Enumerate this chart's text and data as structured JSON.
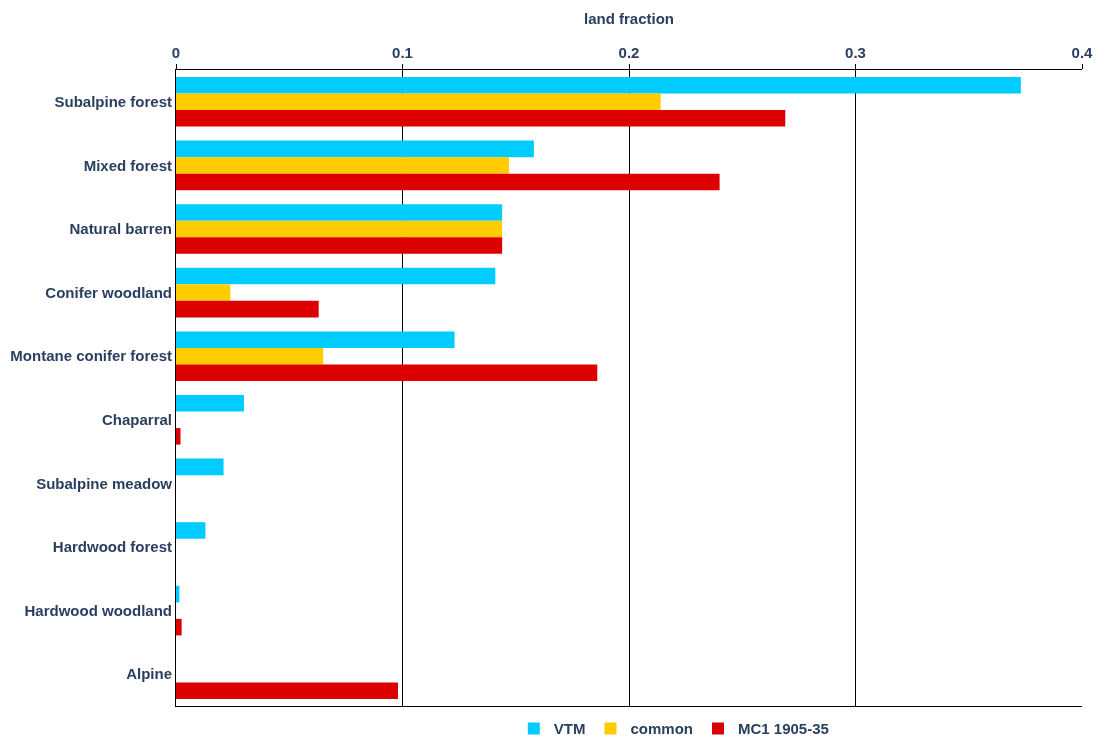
{
  "chart_data": {
    "type": "bar",
    "orientation": "horizontal",
    "xlabel": "land fraction",
    "categories": [
      "Subalpine forest",
      "Mixed forest",
      "Natural barren",
      "Conifer woodland",
      "Montane conifer forest",
      "Chaparral",
      "Subalpine meadow",
      "Hardwood forest",
      "Hardwood woodland",
      "Alpine"
    ],
    "series": [
      {
        "name": "VTM",
        "color": "#00ccff",
        "values": [
          0.373,
          0.158,
          0.144,
          0.141,
          0.123,
          0.03,
          0.021,
          0.013,
          0.0015,
          null
        ]
      },
      {
        "name": "common",
        "color": "#ffcc00",
        "values": [
          0.214,
          0.147,
          0.144,
          0.024,
          0.065,
          null,
          null,
          null,
          null,
          null
        ]
      },
      {
        "name": "MC1 1905-35",
        "color": "#dd0000",
        "values": [
          0.269,
          0.24,
          0.144,
          0.063,
          0.186,
          0.002,
          null,
          null,
          0.0025,
          0.098
        ]
      }
    ],
    "xlim": [
      0,
      0.4
    ],
    "xticks": [
      0,
      0.1,
      0.2,
      0.3,
      0.4
    ],
    "grid": "x",
    "legend": "bottom"
  }
}
